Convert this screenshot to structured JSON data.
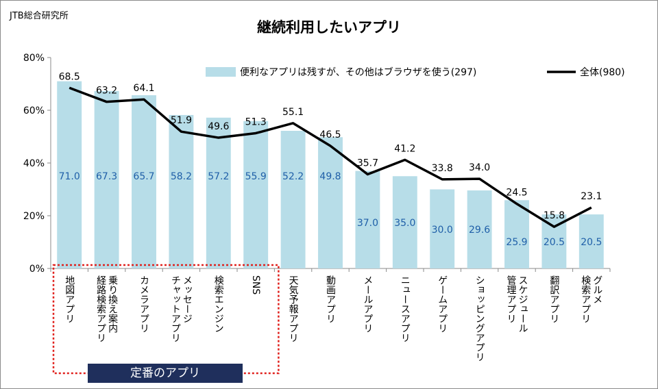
{
  "source": "JTB総合研究所",
  "chart_data": {
    "type": "bar",
    "title": "継続利用したいアプリ",
    "categories": [
      "地図アプリ",
      "乗り換え案内\n経路検索アプリ",
      "カメラアプリ",
      "メッセージ\nチャットアプリ",
      "検索エンジン",
      "SNS",
      "天気予報アプリ",
      "動画アプリ",
      "メールアプリ",
      "ニュースアプリ",
      "ゲームアプリ",
      "ショッピングアプリ",
      "スケジュール\n管理アプリ",
      "翻訳アプリ",
      "グルメ\n検索アプリ"
    ],
    "series": [
      {
        "name": "便利なアプリは残すが、その他はブラウザを使う(297)",
        "type": "bar",
        "color": "#b7dde8",
        "label_color": "#1f5fa8",
        "values": [
          71.0,
          67.3,
          65.7,
          58.2,
          57.2,
          55.9,
          52.2,
          49.8,
          37.0,
          35.0,
          30.0,
          29.6,
          25.9,
          20.5,
          20.5
        ],
        "labels": [
          "71.0",
          "67.3",
          "65.7",
          "58.2",
          "57.2",
          "55.9",
          "52.2",
          "49.8",
          "37.0",
          "35.0",
          "30.0",
          "29.6",
          "25.9",
          "20.5",
          "20.5"
        ]
      },
      {
        "name": "全体(980)",
        "type": "line",
        "color": "#000000",
        "values": [
          68.5,
          63.2,
          64.1,
          51.9,
          49.6,
          51.3,
          55.1,
          46.5,
          35.7,
          41.2,
          33.8,
          34.0,
          24.5,
          15.8,
          23.1
        ],
        "labels": [
          "68.5",
          "63.2",
          "64.1",
          "51.9",
          "49.6",
          "51.3",
          "55.1",
          "46.5",
          "35.7",
          "41.2",
          "33.8",
          "34.0",
          "24.5",
          "15.8",
          "23.1"
        ]
      }
    ],
    "ylim": [
      0,
      80
    ],
    "yticks": [
      "0%",
      "20%",
      "40%",
      "60%",
      "80%"
    ],
    "legend_position": "top-right",
    "grid": false,
    "group_annotation": {
      "label": "定番のアプリ",
      "categories_from": 0,
      "categories_to": 5,
      "border_color": "#e0201c",
      "fill": "#1f2f5c"
    }
  }
}
